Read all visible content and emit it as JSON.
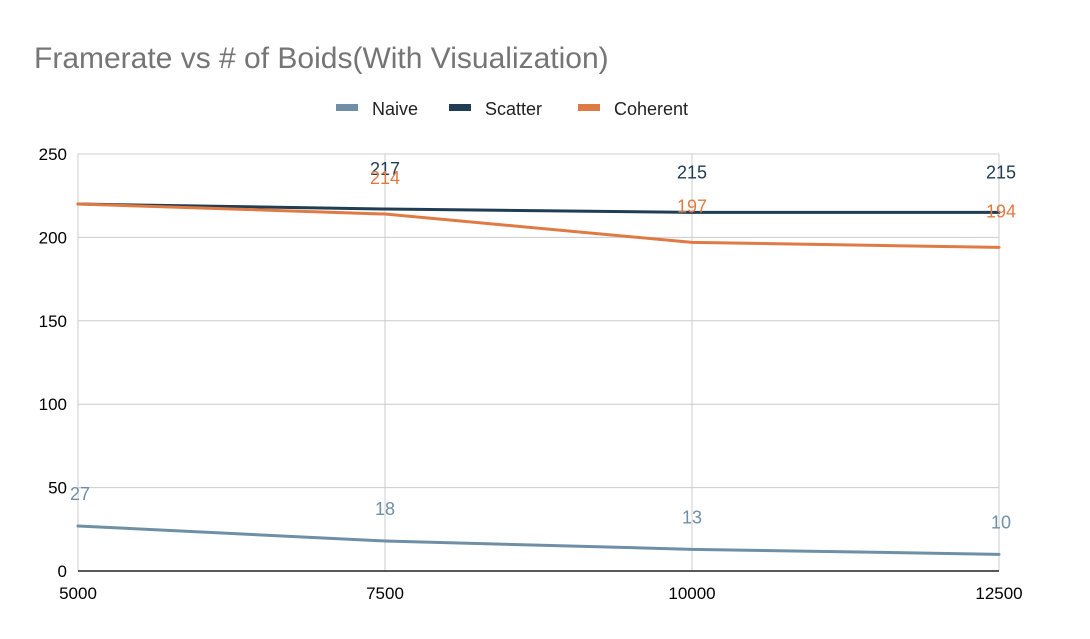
{
  "chart_data": {
    "type": "line",
    "title": "Framerate vs # of Boids(With Visualization)",
    "xlabel": "",
    "ylabel": "",
    "x": [
      5000,
      7500,
      10000,
      12500
    ],
    "x_tick_labels": [
      "5000",
      "7500",
      "10000",
      "12500"
    ],
    "y_ticks": [
      0,
      50,
      100,
      150,
      200,
      250
    ],
    "xlim": [
      5000,
      12500
    ],
    "ylim": [
      0,
      250
    ],
    "grid": true,
    "legend_position": "top",
    "series": [
      {
        "name": "Naive",
        "values": [
          27,
          18,
          13,
          10
        ],
        "data_labels": [
          "27",
          "18",
          "13",
          "10"
        ],
        "color": "#6f8fa6"
      },
      {
        "name": "Scatter",
        "values": [
          220,
          217,
          215,
          215
        ],
        "data_labels": [
          "",
          "217",
          "215",
          "215"
        ],
        "color": "#213d53"
      },
      {
        "name": "Coherent",
        "values": [
          220,
          214,
          197,
          194
        ],
        "data_labels": [
          "",
          "214",
          "197",
          "194"
        ],
        "color": "#e07a44"
      }
    ]
  }
}
